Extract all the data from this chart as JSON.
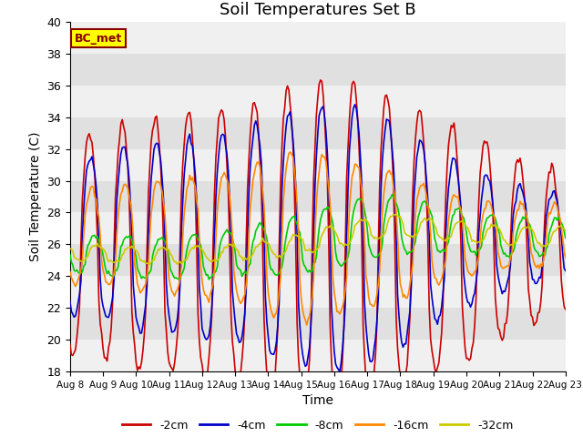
{
  "title": "Soil Temperatures Set B",
  "xlabel": "Time",
  "ylabel": "Soil Temperature (C)",
  "ylim": [
    18,
    40
  ],
  "xlim": [
    0,
    360
  ],
  "xtick_labels": [
    "Aug 8",
    "Aug 9",
    "Aug 10",
    "Aug 11",
    "Aug 12",
    "Aug 13",
    "Aug 14",
    "Aug 15",
    "Aug 16",
    "Aug 17",
    "Aug 18",
    "Aug 19",
    "Aug 20",
    "Aug 21",
    "Aug 22",
    "Aug 23"
  ],
  "xtick_positions": [
    0,
    24,
    48,
    72,
    96,
    120,
    144,
    168,
    192,
    216,
    240,
    264,
    288,
    312,
    336,
    360
  ],
  "series_colors": [
    "#cc0000",
    "#0000cc",
    "#00cc00",
    "#ff8800",
    "#cccc00"
  ],
  "series_labels": [
    "-2cm",
    "-4cm",
    "-8cm",
    "-16cm",
    "-32cm"
  ],
  "annotation_text": "BC_met",
  "annotation_bg": "#ffff00",
  "annotation_border": "#880000",
  "title_fontsize": 13,
  "stripe_colors": [
    "#f0f0f0",
    "#e0e0e0"
  ]
}
